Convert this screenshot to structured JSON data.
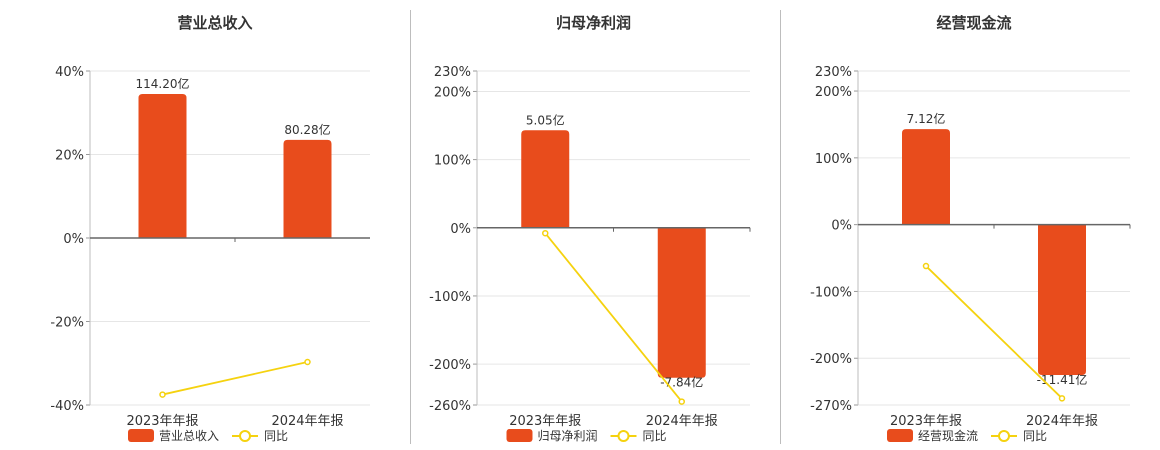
{
  "chart_data": [
    {
      "type": "bar",
      "title": "营业总收入",
      "categories": [
        "2023年年报",
        "2024年年报"
      ],
      "ylim": [
        -40,
        40
      ],
      "yticks": [
        "40%",
        "20%",
        "0%",
        "-20%",
        "-40%"
      ],
      "yticks_values": [
        40,
        20,
        0,
        -20,
        -40
      ],
      "series": [
        {
          "name": "营业总收入",
          "type": "bar",
          "values": [
            34.5,
            23.5
          ],
          "labels": [
            "114.20亿",
            "80.28亿"
          ],
          "color": "#e84c1c"
        },
        {
          "name": "同比",
          "type": "line",
          "values": [
            -37.5,
            -29.7
          ],
          "color": "#f5d20f"
        }
      ],
      "legend": "bottom-center",
      "grid": true
    },
    {
      "type": "bar",
      "title": "归母净利润",
      "categories": [
        "2023年年报",
        "2024年年报"
      ],
      "ylim": [
        -260,
        230
      ],
      "yticks": [
        "230%",
        "200%",
        "100%",
        "0%",
        "-100%",
        "-200%",
        "-260%"
      ],
      "yticks_values": [
        230,
        200,
        100,
        0,
        -100,
        -200,
        -260
      ],
      "series": [
        {
          "name": "归母净利润",
          "type": "bar",
          "values": [
            143,
            -220
          ],
          "labels": [
            "5.05亿",
            "-7.84亿"
          ],
          "color": "#e84c1c"
        },
        {
          "name": "同比",
          "type": "line",
          "values": [
            -8,
            -255
          ],
          "color": "#f5d20f"
        }
      ],
      "legend": "bottom-center",
      "grid": true
    },
    {
      "type": "bar",
      "title": "经营现金流",
      "categories": [
        "2023年年报",
        "2024年年报"
      ],
      "ylim": [
        -270,
        230
      ],
      "yticks": [
        "230%",
        "200%",
        "100%",
        "0%",
        "-100%",
        "-200%",
        "-270%"
      ],
      "yticks_values": [
        230,
        200,
        100,
        0,
        -100,
        -200,
        -270
      ],
      "series": [
        {
          "name": "经营现金流",
          "type": "bar",
          "values": [
            143,
            -225
          ],
          "labels": [
            "7.12亿",
            "-11.41亿"
          ],
          "color": "#e84c1c"
        },
        {
          "name": "同比",
          "type": "line",
          "values": [
            -62,
            -260
          ],
          "color": "#f5d20f"
        }
      ],
      "legend": "bottom-center",
      "grid": true
    }
  ]
}
